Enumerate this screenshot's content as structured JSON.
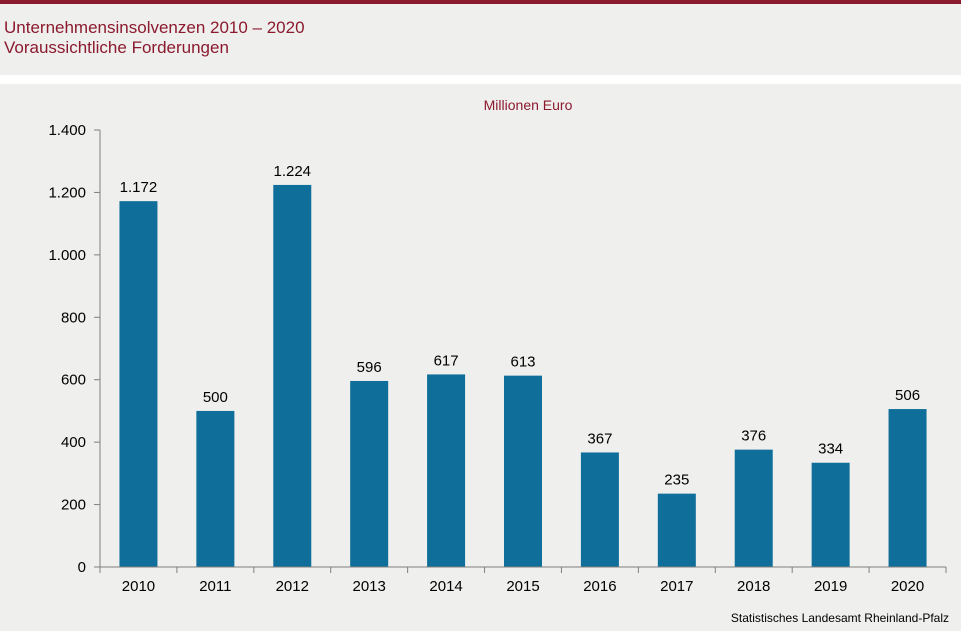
{
  "header": {
    "title_line1": "Unternehmensinsolvenzen 2010 – 2020",
    "title_line2": "Voraussichtliche Forderungen"
  },
  "colors": {
    "accent": "#8b1a2e",
    "bar": "#0f6f9a",
    "background": "#efefee"
  },
  "chart_data": {
    "type": "bar",
    "unit": "Millionen  Euro",
    "categories": [
      "2010",
      "2011",
      "2012",
      "2013",
      "2014",
      "2015",
      "2016",
      "2017",
      "2018",
      "2019",
      "2020"
    ],
    "values": [
      1172,
      500,
      1224,
      596,
      617,
      613,
      367,
      235,
      376,
      334,
      506
    ],
    "value_labels": [
      "1.172",
      "500",
      "1.224",
      "596",
      "617",
      "613",
      "367",
      "235",
      "376",
      "334",
      "506"
    ],
    "yticks": [
      0,
      200,
      400,
      600,
      800,
      1000,
      1200,
      1400
    ],
    "ytick_labels": [
      "0",
      "200",
      "400",
      "600",
      "800",
      "1.000",
      "1.200",
      "1.400"
    ],
    "ylim": [
      0,
      1400
    ],
    "grid": false,
    "legend": "none"
  },
  "source": "Statistisches Landesamt  Rheinland-Pfalz"
}
